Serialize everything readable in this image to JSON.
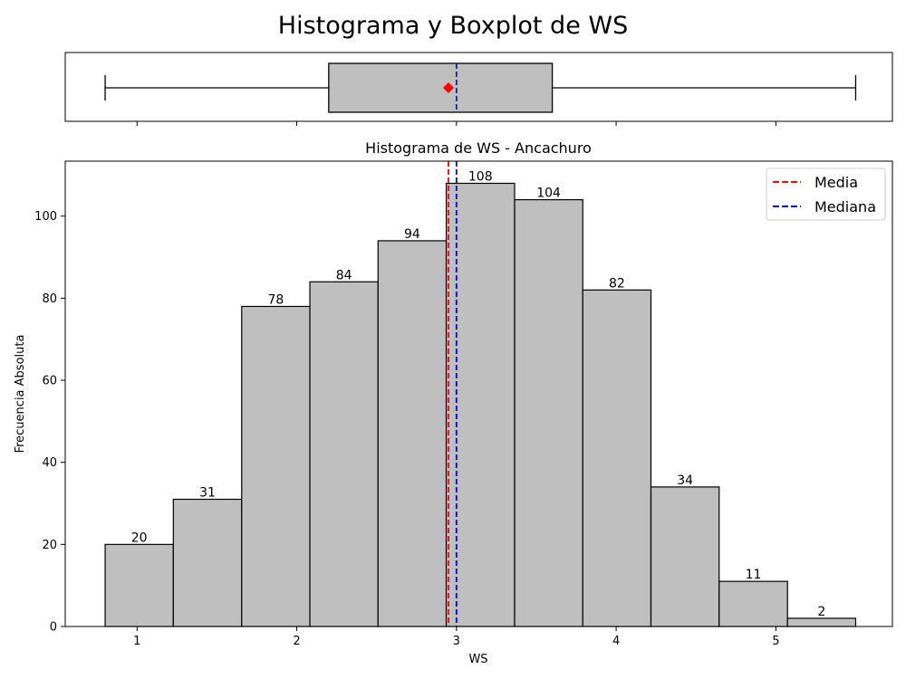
{
  "figure_title": "Histograma y Boxplot de WS",
  "chart_data": [
    {
      "type": "boxplot",
      "variable": "WS",
      "whisker_low": 0.8,
      "q1": 2.2,
      "median": 3.0,
      "q3": 3.6,
      "whisker_high": 5.5,
      "mean": 2.95,
      "xlim": [
        0.55,
        5.73
      ],
      "colors": {
        "box": "#bfbfbf",
        "median": "#0000ff",
        "mean": "#ff0000",
        "edge": "#000000"
      }
    },
    {
      "type": "bar",
      "title": "Histograma de WS - Ancachuro",
      "xlabel": "WS",
      "ylabel": "Frecuencia Absoluta",
      "xlim": [
        0.55,
        5.73
      ],
      "ylim": [
        0,
        113.4
      ],
      "xticks": [
        1,
        2,
        3,
        4,
        5
      ],
      "yticks": [
        0,
        20,
        40,
        60,
        80,
        100
      ],
      "bin_edges": [
        0.8,
        1.227,
        1.655,
        2.082,
        2.509,
        2.936,
        3.364,
        3.791,
        4.218,
        4.645,
        5.073,
        5.5
      ],
      "values": [
        20,
        31,
        78,
        84,
        94,
        108,
        104,
        82,
        34,
        11,
        2
      ],
      "mean": 2.95,
      "median": 3.0,
      "legend": {
        "position": "top-right",
        "items": [
          {
            "label": "Media",
            "color": "#ff0000"
          },
          {
            "label": "Mediana",
            "color": "#0000ff"
          }
        ]
      },
      "colors": {
        "bar": "#bfbfbf",
        "edge": "#000000"
      }
    }
  ]
}
